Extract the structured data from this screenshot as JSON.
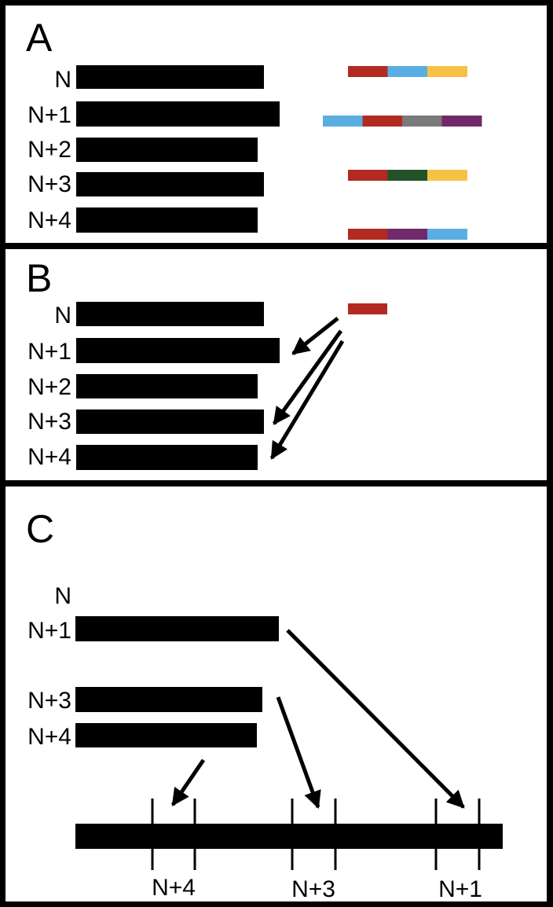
{
  "panels": [
    {
      "letter": "A",
      "rows": [
        {
          "label": "N",
          "blocks": [
            "red",
            "blue",
            "yellow"
          ]
        },
        {
          "label": "N+1",
          "blocks": [
            "blue",
            "red",
            "gray",
            "purple"
          ]
        },
        {
          "label": "N+2",
          "blocks": []
        },
        {
          "label": "N+3",
          "blocks": [
            "red",
            "green",
            "yellow"
          ]
        },
        {
          "label": "N+4",
          "blocks": [
            "red",
            "purple",
            "blue"
          ]
        }
      ]
    },
    {
      "letter": "B",
      "rows": [
        {
          "label": "N"
        },
        {
          "label": "N+1"
        },
        {
          "label": "N+2"
        },
        {
          "label": "N+3"
        },
        {
          "label": "N+4"
        }
      ],
      "query_block": "red",
      "arrows_to": [
        "N+1",
        "N+3",
        "N+4"
      ]
    },
    {
      "letter": "C",
      "rows": [
        {
          "label": "N"
        },
        {
          "label": "N+1"
        },
        {
          "label": "N+3"
        },
        {
          "label": "N+4"
        }
      ],
      "scale_labels": [
        "N+4",
        "N+3",
        "N+1"
      ]
    }
  ],
  "colors": {
    "red": "#b22a22",
    "blue": "#5aaee2",
    "yellow": "#f7c244",
    "gray": "#7a7a7a",
    "purple": "#702a6c",
    "green": "#24522a",
    "bar": "#000000",
    "background": "#ffffff"
  }
}
